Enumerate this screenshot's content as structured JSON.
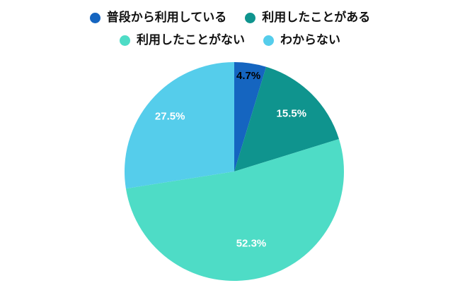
{
  "chart_data": {
    "type": "pie",
    "title": "",
    "legend_position": "top",
    "background_color": "#ffffff",
    "start_angle_deg": 0,
    "direction": "clockwise",
    "total": 100,
    "slices": [
      {
        "label": "普段から利用している",
        "value": 4.7,
        "display": "4.7%",
        "color": "#1565c0",
        "label_color": "#000000",
        "label_r": 0.88
      },
      {
        "label": "利用したことがある",
        "value": 15.5,
        "display": "15.5%",
        "color": "#0f948e",
        "label_color": "#ffffff",
        "label_r": 0.74
      },
      {
        "label": "利用したことがない",
        "value": 52.3,
        "display": "52.3%",
        "color": "#4edcc6",
        "label_color": "#ffffff",
        "label_r": 0.68
      },
      {
        "label": "わからない",
        "value": 27.5,
        "display": "27.5%",
        "color": "#55cdeb",
        "label_color": "#ffffff",
        "label_r": 0.77
      }
    ],
    "legend_rows": [
      [
        0,
        1
      ],
      [
        2,
        3
      ]
    ]
  }
}
